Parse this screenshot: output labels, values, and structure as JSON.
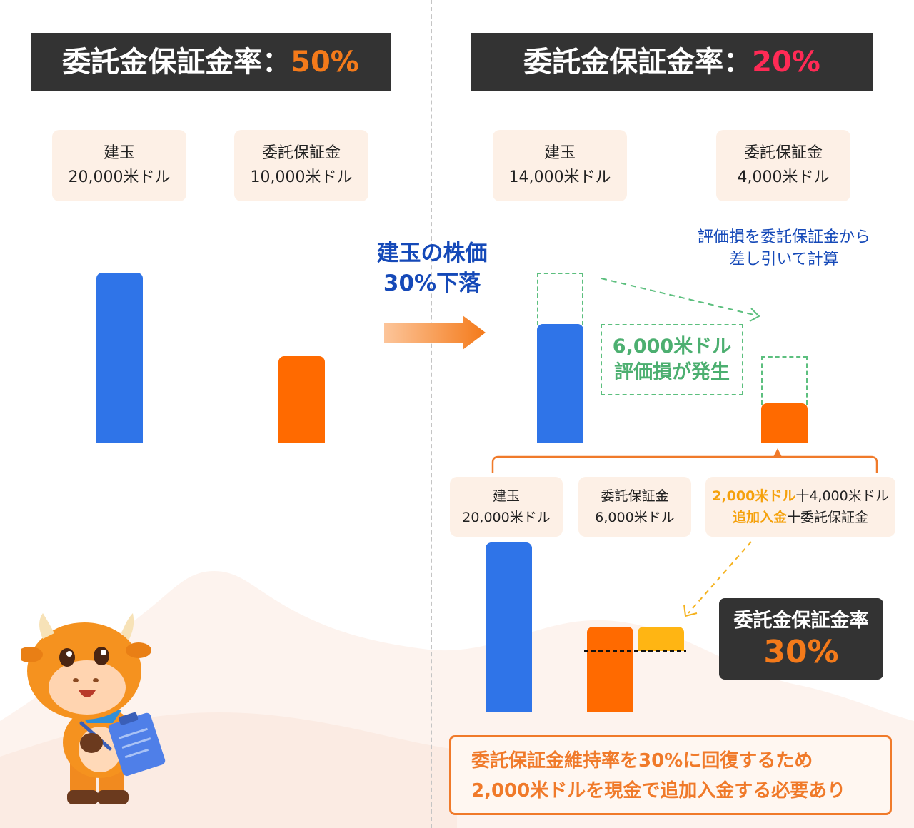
{
  "colors": {
    "blue_bar": "#2f74e8",
    "orange_bar": "#ff6a00",
    "yellow_bar": "#ffb513",
    "accent_orange": "#f47a1a",
    "accent_red": "#ff2a55",
    "green": "#4caf70",
    "dark": "#333333"
  },
  "left": {
    "title_prefix": "委託金保証金率：",
    "title_value": "50%",
    "cards": [
      {
        "line1": "建玉",
        "line2": "20,000米ドル"
      },
      {
        "line1": "委託保証金",
        "line2": "10,000米ドル"
      }
    ]
  },
  "arrow": {
    "line1": "建玉の株価",
    "line2": "30%下落"
  },
  "right": {
    "title_prefix": "委託金保証金率：",
    "title_value": "20%",
    "cards": [
      {
        "line1": "建玉",
        "line2": "14,000米ドル"
      },
      {
        "line1": "委託保証金",
        "line2": "4,000米ドル"
      }
    ],
    "note_line1": "評価損を委託保証金から",
    "note_line2": "差し引いて計算",
    "loss_line1": "6,000米ドル",
    "loss_line2": "評価損が発生",
    "lower_cards": [
      {
        "line1": "建玉",
        "line2": "20,000米ドル"
      },
      {
        "line1": "委託保証金",
        "line2": "6,000米ドル"
      }
    ],
    "sum_card": {
      "a_hl": "2,000米ドル",
      "a_rest": "十4,000米ドル",
      "b_hl": "追加入金",
      "b_rest": "十委託保証金"
    },
    "rate_label": "委託金保証金率",
    "rate_value": "30%"
  },
  "banner": {
    "line1": "委託保証金維持率を30%に回復するため",
    "line2": "2,000米ドルを現金で追加入金する必要あり"
  },
  "mascot": {
    "icon": "bull-mascot-with-clipboard"
  }
}
